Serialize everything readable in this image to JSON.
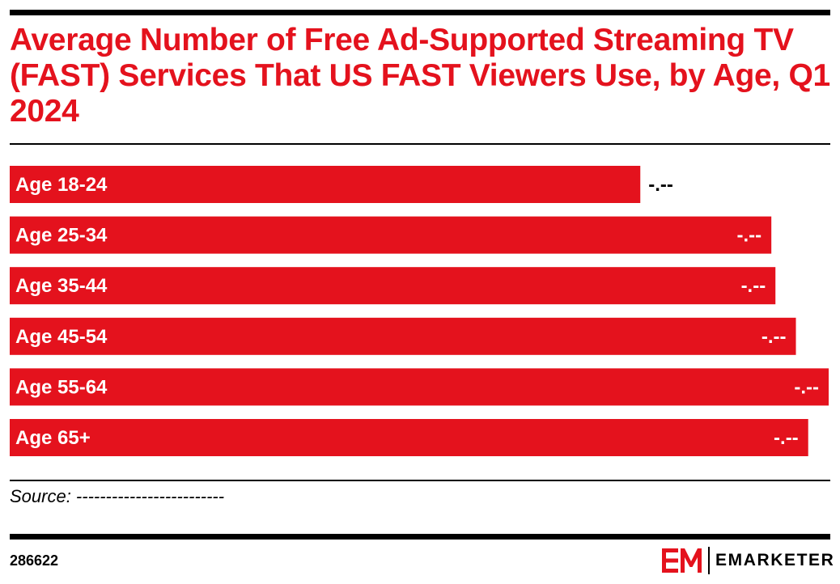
{
  "title": "Average Number of Free Ad-Supported Streaming TV (FAST) Services That US FAST Viewers Use, by Age, Q1 2024",
  "source_text": "Source: -------------------------",
  "chart_id": "286622",
  "brand": {
    "name": "EMARKETER",
    "accent": "#e4121d"
  },
  "colors": {
    "bar": "#e4121d",
    "text": "#000000"
  },
  "chart_data": {
    "type": "bar",
    "orientation": "horizontal",
    "title": "Average Number of Free Ad-Supported Streaming TV (FAST) Services That US FAST Viewers Use, by Age, Q1 2024",
    "categories": [
      "Age 18-24",
      "Age 25-34",
      "Age 35-44",
      "Age 45-54",
      "Age 55-64",
      "Age 65+"
    ],
    "values": [
      3.08,
      3.72,
      3.74,
      3.84,
      4.0,
      3.9
    ],
    "value_labels": [
      "-.--",
      "-.--",
      "-.--",
      "-.--",
      "-.--",
      "-.--"
    ],
    "xlim": [
      0,
      4.0
    ],
    "grid": false,
    "legend": "none"
  }
}
